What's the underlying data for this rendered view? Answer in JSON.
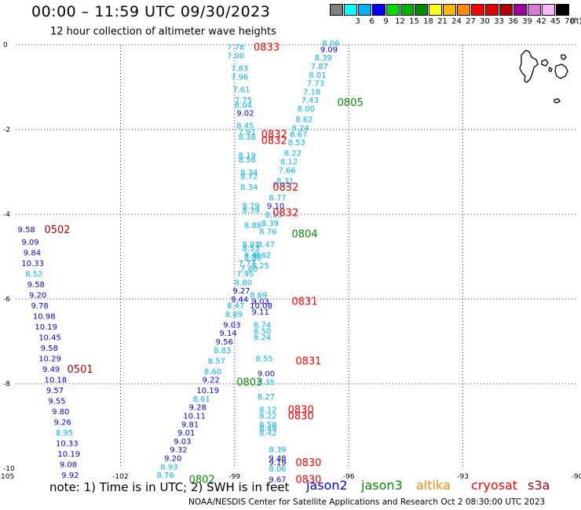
{
  "header": {
    "title": "00:00 – 11:59 UTC 09/30/2023",
    "subtitle": "12 hour collection of altimeter wave heights"
  },
  "colorbar": {
    "colors": [
      "#808080",
      "#00ffff",
      "#00b4ff",
      "#0000ff",
      "#00dc00",
      "#00b400",
      "#008c00",
      "#ffff00",
      "#ffb400",
      "#ff8c00",
      "#ff0000",
      "#dc0000",
      "#b40000",
      "#a000a0",
      "#dc78dc",
      "#ffb4ff",
      "#000000"
    ],
    "labels": [
      "",
      "3",
      "6",
      "9",
      "12",
      "15",
      "18",
      "21",
      "24",
      "27",
      "30",
      "33",
      "36",
      "39",
      "42",
      "45",
      "70"
    ],
    "unit": "(ft)"
  },
  "axes": {
    "lon_ticks": [
      "-105",
      "-102",
      "-99",
      "-96",
      "-93",
      "-90"
    ],
    "lat_ticks": [
      "0",
      "-2",
      "-4",
      "-6",
      "-8",
      "-10"
    ]
  },
  "footer": {
    "note": "note: 1) Time is in UTC; 2) SWH is in feet",
    "satellites": [
      {
        "name": "jason2",
        "color": "#0000ff"
      },
      {
        "name": "jason3",
        "color": "#008c00"
      },
      {
        "name": "altika",
        "color": "#ff8c00"
      },
      {
        "name": "cryosat",
        "color": "#ff0000"
      },
      {
        "name": "s3a",
        "color": "#b40000"
      }
    ],
    "credit": "NOAA/NESDIS Center for Satellite Applications and Research   Oct  2 08:30:00 UTC 2023"
  },
  "colors": {
    "c8": "#00b4ff",
    "c9": "#0000ff",
    "jason3": "#008c00",
    "cryosat": "#ff0000",
    "s3a": "#b40000"
  },
  "chart_data": {
    "type": "scatter",
    "xlim": [
      -105,
      -90
    ],
    "ylim": [
      -10,
      0
    ],
    "points": [
      {
        "x": -99.2,
        "y": -0.05,
        "v": "7.78"
      },
      {
        "x": -99.2,
        "y": -0.25,
        "v": "7.00"
      },
      {
        "x": -99.1,
        "y": -0.55,
        "v": "7.83"
      },
      {
        "x": -99.1,
        "y": -0.75,
        "v": "7.96"
      },
      {
        "x": -99.05,
        "y": -1.05,
        "v": "7.61"
      },
      {
        "x": -99.0,
        "y": -1.3,
        "v": "7.75"
      },
      {
        "x": -99.0,
        "y": -1.42,
        "v": "8.04"
      },
      {
        "x": -98.95,
        "y": -1.6,
        "v": "9.02"
      },
      {
        "x": -98.95,
        "y": -1.9,
        "v": "8.45"
      },
      {
        "x": -98.9,
        "y": -2.05,
        "v": "7.91"
      },
      {
        "x": -98.9,
        "y": -2.17,
        "v": "8.38"
      },
      {
        "x": -98.9,
        "y": -2.6,
        "v": "8.19"
      },
      {
        "x": -98.9,
        "y": -2.7,
        "v": "8.56"
      },
      {
        "x": -98.85,
        "y": -3.0,
        "v": "8.34"
      },
      {
        "x": -98.85,
        "y": -3.1,
        "v": "8.72"
      },
      {
        "x": -98.85,
        "y": -3.35,
        "v": "8.34"
      },
      {
        "x": -98.8,
        "y": -3.8,
        "v": "8.79"
      },
      {
        "x": -98.8,
        "y": -3.9,
        "v": "8.39"
      },
      {
        "x": -98.75,
        "y": -4.25,
        "v": "8.88"
      },
      {
        "x": -98.8,
        "y": -4.7,
        "v": "8.91"
      },
      {
        "x": -98.8,
        "y": -4.8,
        "v": "8.53"
      },
      {
        "x": -98.75,
        "y": -4.95,
        "v": "8.65"
      },
      {
        "x": -98.75,
        "y": -5.02,
        "v": "8.86"
      },
      {
        "x": -98.9,
        "y": -5.15,
        "v": "7.77"
      },
      {
        "x": -98.85,
        "y": -5.28,
        "v": "7.60"
      },
      {
        "x": -98.95,
        "y": -5.4,
        "v": "7.95"
      },
      {
        "x": -99.0,
        "y": -5.6,
        "v": "8.80"
      },
      {
        "x": -99.05,
        "y": -5.8,
        "v": "9.27"
      },
      {
        "x": -99.1,
        "y": -6.0,
        "v": "9.44"
      },
      {
        "x": -99.2,
        "y": -6.15,
        "v": "8.47"
      },
      {
        "x": -99.25,
        "y": -6.35,
        "v": "8.89"
      },
      {
        "x": -99.3,
        "y": -6.6,
        "v": "9.03"
      },
      {
        "x": -99.4,
        "y": -6.8,
        "v": "9.14"
      },
      {
        "x": -99.5,
        "y": -7.0,
        "v": "9.56"
      },
      {
        "x": -99.55,
        "y": -7.2,
        "v": "8.83"
      },
      {
        "x": -99.7,
        "y": -7.45,
        "v": "8.57"
      },
      {
        "x": -99.8,
        "y": -7.7,
        "v": "8.60"
      },
      {
        "x": -99.85,
        "y": -7.9,
        "v": "9.22"
      },
      {
        "x": -100.0,
        "y": -8.15,
        "v": "10.19"
      },
      {
        "x": -100.1,
        "y": -8.35,
        "v": "8.61"
      },
      {
        "x": -100.2,
        "y": -8.55,
        "v": "9.28"
      },
      {
        "x": -100.35,
        "y": -8.75,
        "v": "10.11"
      },
      {
        "x": -100.4,
        "y": -8.95,
        "v": "9.81"
      },
      {
        "x": -100.5,
        "y": -9.15,
        "v": "9.01"
      },
      {
        "x": -100.6,
        "y": -9.35,
        "v": "9.03"
      },
      {
        "x": -100.7,
        "y": -9.55,
        "v": "9.32"
      },
      {
        "x": -100.85,
        "y": -9.75,
        "v": "9.20"
      },
      {
        "x": -100.95,
        "y": -9.95,
        "v": "8.93"
      },
      {
        "x": -101.05,
        "y": -10.15,
        "v": "8.76"
      },
      {
        "x": -96.7,
        "y": 0.05,
        "v": "8.06"
      },
      {
        "x": -96.75,
        "y": -0.1,
        "v": "9.09"
      },
      {
        "x": -96.9,
        "y": -0.3,
        "v": "8.39"
      },
      {
        "x": -97.0,
        "y": -0.5,
        "v": "7.87"
      },
      {
        "x": -97.05,
        "y": -0.7,
        "v": "8.01"
      },
      {
        "x": -97.1,
        "y": -0.9,
        "v": "7.73"
      },
      {
        "x": -97.2,
        "y": -1.1,
        "v": "7.18"
      },
      {
        "x": -97.25,
        "y": -1.3,
        "v": "7.43"
      },
      {
        "x": -97.35,
        "y": -1.5,
        "v": "8.00"
      },
      {
        "x": -97.4,
        "y": -1.75,
        "v": "8.62"
      },
      {
        "x": -97.5,
        "y": -1.95,
        "v": "8.24"
      },
      {
        "x": -97.55,
        "y": -2.1,
        "v": "8.67"
      },
      {
        "x": -97.6,
        "y": -2.3,
        "v": "8.53"
      },
      {
        "x": -97.7,
        "y": -2.55,
        "v": "8.22"
      },
      {
        "x": -97.8,
        "y": -2.75,
        "v": "8.12"
      },
      {
        "x": -97.85,
        "y": -2.95,
        "v": "7.66"
      },
      {
        "x": -97.9,
        "y": -3.2,
        "v": "8.31"
      },
      {
        "x": -98.0,
        "y": -3.3,
        "v": "8.42"
      },
      {
        "x": -98.1,
        "y": -3.6,
        "v": "8.77"
      },
      {
        "x": -98.15,
        "y": -3.8,
        "v": "9.10"
      },
      {
        "x": -98.2,
        "y": -4.0,
        "v": "8.53"
      },
      {
        "x": -98.3,
        "y": -4.2,
        "v": "8.39"
      },
      {
        "x": -98.35,
        "y": -4.4,
        "v": "8.76"
      },
      {
        "x": -98.4,
        "y": -4.7,
        "v": "8.47"
      },
      {
        "x": -98.5,
        "y": -4.95,
        "v": "8.62"
      },
      {
        "x": -98.55,
        "y": -5.2,
        "v": "8.25"
      },
      {
        "x": -98.6,
        "y": -5.9,
        "v": "8.69"
      },
      {
        "x": -98.55,
        "y": -6.05,
        "v": "9.03"
      },
      {
        "x": -98.6,
        "y": -6.15,
        "v": "10.08"
      },
      {
        "x": -98.55,
        "y": -6.3,
        "v": "9.11"
      },
      {
        "x": -98.5,
        "y": -6.6,
        "v": "8.74"
      },
      {
        "x": -98.5,
        "y": -6.75,
        "v": "8.50"
      },
      {
        "x": -98.5,
        "y": -6.9,
        "v": "8.24"
      },
      {
        "x": -98.45,
        "y": -7.4,
        "v": "8.55"
      },
      {
        "x": -98.4,
        "y": -7.75,
        "v": "9.00"
      },
      {
        "x": -98.4,
        "y": -7.95,
        "v": "8.35"
      },
      {
        "x": -98.4,
        "y": -8.3,
        "v": "8.27"
      },
      {
        "x": -98.35,
        "y": -8.6,
        "v": "8.12"
      },
      {
        "x": -98.35,
        "y": -8.75,
        "v": "8.22"
      },
      {
        "x": -98.35,
        "y": -8.95,
        "v": "8.58"
      },
      {
        "x": -98.35,
        "y": -9.05,
        "v": "8.49"
      },
      {
        "x": -98.35,
        "y": -9.15,
        "v": "8.42"
      },
      {
        "x": -98.1,
        "y": -9.55,
        "v": "8.39"
      },
      {
        "x": -98.1,
        "y": -9.75,
        "v": "9.48"
      },
      {
        "x": -98.1,
        "y": -9.85,
        "v": "9.19"
      },
      {
        "x": -98.1,
        "y": -10.0,
        "v": "8.06"
      },
      {
        "x": -98.1,
        "y": -10.25,
        "v": "9.67"
      },
      {
        "x": -104.7,
        "y": -4.35,
        "v": "9.58"
      },
      {
        "x": -104.6,
        "y": -4.65,
        "v": "9.09"
      },
      {
        "x": -104.55,
        "y": -4.9,
        "v": "9.84"
      },
      {
        "x": -104.6,
        "y": -5.15,
        "v": "10.33"
      },
      {
        "x": -104.5,
        "y": -5.4,
        "v": "8.52"
      },
      {
        "x": -104.45,
        "y": -5.65,
        "v": "9.58"
      },
      {
        "x": -104.4,
        "y": -5.9,
        "v": "9.20"
      },
      {
        "x": -104.35,
        "y": -6.15,
        "v": "9.78"
      },
      {
        "x": -104.3,
        "y": -6.4,
        "v": "10.98"
      },
      {
        "x": -104.25,
        "y": -6.65,
        "v": "10.19"
      },
      {
        "x": -104.15,
        "y": -6.9,
        "v": "10.45"
      },
      {
        "x": -104.1,
        "y": -7.15,
        "v": "9.58"
      },
      {
        "x": -104.15,
        "y": -7.4,
        "v": "10.29"
      },
      {
        "x": -104.05,
        "y": -7.65,
        "v": "9.49"
      },
      {
        "x": -104.0,
        "y": -7.9,
        "v": "10.18"
      },
      {
        "x": -103.95,
        "y": -8.15,
        "v": "9.57"
      },
      {
        "x": -103.9,
        "y": -8.4,
        "v": "9.55"
      },
      {
        "x": -103.8,
        "y": -8.65,
        "v": "9.80"
      },
      {
        "x": -103.75,
        "y": -8.9,
        "v": "9.26"
      },
      {
        "x": -103.7,
        "y": -9.15,
        "v": "8.95"
      },
      {
        "x": -103.7,
        "y": -9.4,
        "v": "10.33"
      },
      {
        "x": -103.65,
        "y": -9.65,
        "v": "10.19"
      },
      {
        "x": -103.6,
        "y": -9.9,
        "v": "9.08"
      },
      {
        "x": -103.55,
        "y": -10.15,
        "v": "9.92"
      }
    ],
    "passes": [
      {
        "x": -98.5,
        "y": -0.05,
        "label": "0833",
        "sat": "cryosat"
      },
      {
        "x": -96.3,
        "y": -1.35,
        "label": "0805",
        "sat": "jason3"
      },
      {
        "x": -98.3,
        "y": -2.1,
        "label": "0832",
        "sat": "cryosat"
      },
      {
        "x": -98.3,
        "y": -2.25,
        "label": "0832",
        "sat": "cryosat"
      },
      {
        "x": -98.0,
        "y": -3.35,
        "label": "0832",
        "sat": "cryosat"
      },
      {
        "x": -98.0,
        "y": -3.95,
        "label": "0832",
        "sat": "cryosat"
      },
      {
        "x": -97.5,
        "y": -4.45,
        "label": "0804",
        "sat": "jason3"
      },
      {
        "x": -104.0,
        "y": -4.35,
        "label": "0502",
        "sat": "s3a"
      },
      {
        "x": -97.5,
        "y": -6.05,
        "label": "0831",
        "sat": "cryosat"
      },
      {
        "x": -97.4,
        "y": -7.45,
        "label": "0831",
        "sat": "cryosat"
      },
      {
        "x": -103.4,
        "y": -7.65,
        "label": "0501",
        "sat": "s3a"
      },
      {
        "x": -98.95,
        "y": -7.95,
        "label": "0803",
        "sat": "jason3"
      },
      {
        "x": -97.6,
        "y": -8.6,
        "label": "0830",
        "sat": "cryosat"
      },
      {
        "x": -97.6,
        "y": -8.75,
        "label": "0830",
        "sat": "cryosat"
      },
      {
        "x": -97.4,
        "y": -9.85,
        "label": "0830",
        "sat": "cryosat"
      },
      {
        "x": -97.4,
        "y": -10.25,
        "label": "0830",
        "sat": "cryosat"
      },
      {
        "x": -100.2,
        "y": -10.25,
        "label": "0802",
        "sat": "jason3"
      }
    ]
  }
}
